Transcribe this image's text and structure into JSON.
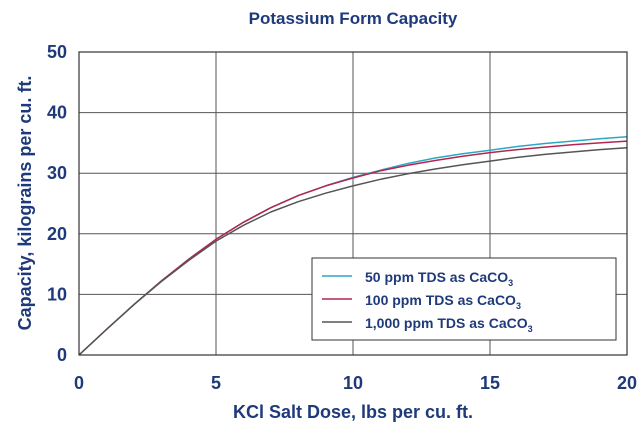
{
  "chart_data": {
    "type": "line",
    "title": "Potassium Form Capacity",
    "xlabel": "KCl Salt Dose, lbs per cu. ft.",
    "ylabel": "Capacity, kilograins per cu. ft.",
    "xlim": [
      0,
      20
    ],
    "ylim": [
      0,
      50
    ],
    "xticks": [
      0,
      5,
      10,
      15,
      20
    ],
    "yticks": [
      0,
      10,
      20,
      30,
      40,
      50
    ],
    "grid": true,
    "legend_position": "lower-right",
    "x": [
      0,
      1,
      2,
      3,
      4,
      5,
      6,
      7,
      8,
      9,
      10,
      11,
      12,
      13,
      14,
      15,
      16,
      17,
      18,
      19,
      20
    ],
    "series": [
      {
        "name": "50 ppm TDS as CaCO3",
        "label_main": "50 ppm TDS as CaCO",
        "label_sub": "3",
        "color": "#2aa9c4",
        "values": [
          0,
          4.2,
          8.3,
          12.2,
          15.8,
          19.1,
          21.9,
          24.3,
          26.3,
          27.9,
          29.3,
          30.5,
          31.6,
          32.5,
          33.2,
          33.8,
          34.4,
          34.9,
          35.3,
          35.7,
          36.0
        ]
      },
      {
        "name": "100 ppm TDS as CaCO3",
        "label_main": "100 ppm TDS as CaCO",
        "label_sub": "3",
        "color": "#b5254f",
        "values": [
          0,
          4.2,
          8.3,
          12.2,
          15.8,
          19.1,
          21.9,
          24.3,
          26.3,
          27.9,
          29.2,
          30.4,
          31.3,
          32.1,
          32.8,
          33.4,
          33.9,
          34.3,
          34.7,
          35.0,
          35.3
        ]
      },
      {
        "name": "1,000 ppm TDS as CaCO3",
        "label_main": "1,000 ppm TDS as CaCO",
        "label_sub": "3",
        "color": "#555555",
        "values": [
          0,
          4.2,
          8.3,
          12.1,
          15.6,
          18.8,
          21.4,
          23.6,
          25.3,
          26.7,
          27.9,
          29.0,
          29.9,
          30.7,
          31.4,
          32.0,
          32.6,
          33.1,
          33.5,
          33.9,
          34.2
        ]
      }
    ]
  }
}
